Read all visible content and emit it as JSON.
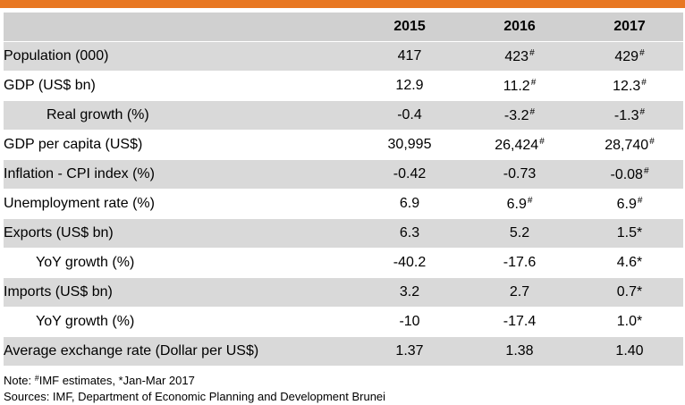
{
  "header": {
    "years": [
      "2015",
      "2016",
      "2017"
    ]
  },
  "rows": [
    {
      "label": "Population (000)",
      "indent": 0,
      "values": [
        {
          "v": "417",
          "m": ""
        },
        {
          "v": "423",
          "m": "#"
        },
        {
          "v": "429",
          "m": "#"
        }
      ]
    },
    {
      "label": "GDP (US$ bn)",
      "indent": 0,
      "values": [
        {
          "v": "12.9",
          "m": ""
        },
        {
          "v": "11.2",
          "m": "#"
        },
        {
          "v": "12.3",
          "m": "#"
        }
      ]
    },
    {
      "label": "Real growth (%)",
      "indent": 1,
      "values": [
        {
          "v": "-0.4",
          "m": ""
        },
        {
          "v": "-3.2",
          "m": "#"
        },
        {
          "v": "-1.3",
          "m": "#"
        }
      ]
    },
    {
      "label": "GDP per capita (US$)",
      "indent": 0,
      "values": [
        {
          "v": "30,995",
          "m": ""
        },
        {
          "v": "26,424",
          "m": "#"
        },
        {
          "v": "28,740",
          "m": "#"
        }
      ]
    },
    {
      "label": "Inflation - CPI index (%)",
      "indent": 0,
      "values": [
        {
          "v": "-0.42",
          "m": ""
        },
        {
          "v": "-0.73",
          "m": ""
        },
        {
          "v": "-0.08",
          "m": "#"
        }
      ]
    },
    {
      "label": "Unemployment rate (%)",
      "indent": 0,
      "values": [
        {
          "v": "6.9",
          "m": ""
        },
        {
          "v": "6.9",
          "m": "#"
        },
        {
          "v": "6.9",
          "m": "#"
        }
      ]
    },
    {
      "label": "Exports (US$ bn)",
      "indent": 0,
      "values": [
        {
          "v": "6.3",
          "m": ""
        },
        {
          "v": "5.2",
          "m": ""
        },
        {
          "v": "1.5*",
          "m": ""
        }
      ]
    },
    {
      "label": "YoY growth (%)",
      "indent": 2,
      "values": [
        {
          "v": "-40.2",
          "m": ""
        },
        {
          "v": "-17.6",
          "m": ""
        },
        {
          "v": "4.6*",
          "m": ""
        }
      ]
    },
    {
      "label": "Imports (US$ bn)",
      "indent": 0,
      "values": [
        {
          "v": "3.2",
          "m": ""
        },
        {
          "v": "2.7",
          "m": ""
        },
        {
          "v": "0.7*",
          "m": ""
        }
      ]
    },
    {
      "label": "YoY growth (%)",
      "indent": 2,
      "values": [
        {
          "v": "-10",
          "m": ""
        },
        {
          "v": "-17.4",
          "m": ""
        },
        {
          "v": "1.0*",
          "m": ""
        }
      ]
    },
    {
      "label": "Average exchange rate (Dollar per US$)",
      "indent": 0,
      "values": [
        {
          "v": "1.37",
          "m": ""
        },
        {
          "v": "1.38",
          "m": ""
        },
        {
          "v": "1.40",
          "m": ""
        }
      ]
    }
  ],
  "notes": {
    "note_prefix": "Note: ",
    "note_mark": "#",
    "note_text": "IMF estimates, *Jan-Mar 2017",
    "sources": "Sources: IMF, Department of Economic Planning and Development Brunei"
  },
  "colors": {
    "accent": "#e87722",
    "header_bg": "#d0d0d0",
    "band_bg": "#d9d9d9"
  }
}
